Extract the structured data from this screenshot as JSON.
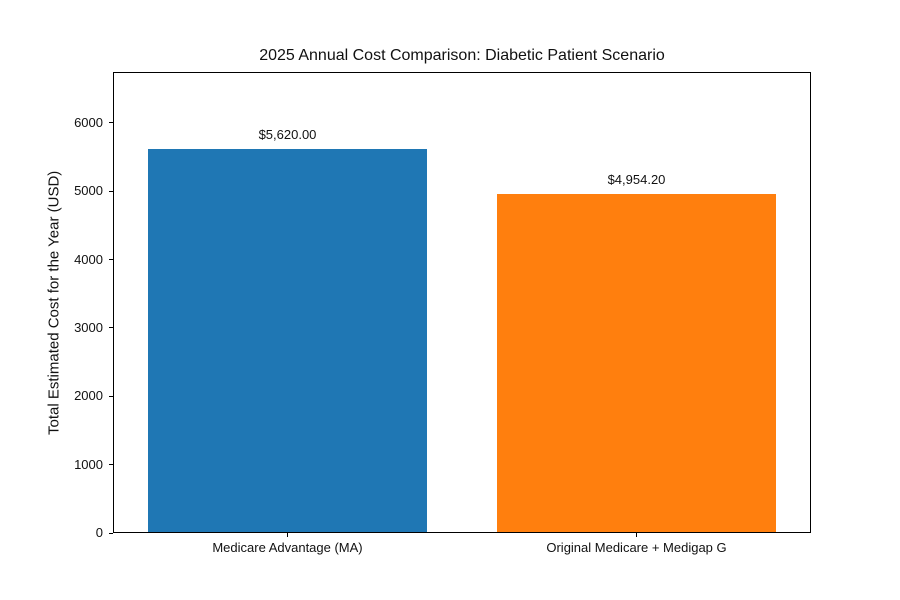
{
  "chart_data": {
    "type": "bar",
    "title": "2025 Annual Cost Comparison: Diabetic Patient Scenario",
    "categories": [
      "Medicare Advantage (MA)",
      "Original Medicare + Medigap G"
    ],
    "values": [
      5620.0,
      4954.2
    ],
    "value_labels": [
      "$5,620.00",
      "$4,954.20"
    ],
    "bar_colors": [
      "#1f77b4",
      "#ff7f0e"
    ],
    "xlabel": "",
    "ylabel": "Total Estimated Cost for the Year (USD)",
    "ylim": [
      0,
      6744
    ],
    "yticks": [
      0,
      1000,
      2000,
      3000,
      4000,
      5000,
      6000
    ],
    "bar_width_fraction": 0.8,
    "grid": false,
    "legend": "none",
    "background_color": "#ffffff",
    "spine_color": "#000000",
    "text_color": "#111111"
  }
}
